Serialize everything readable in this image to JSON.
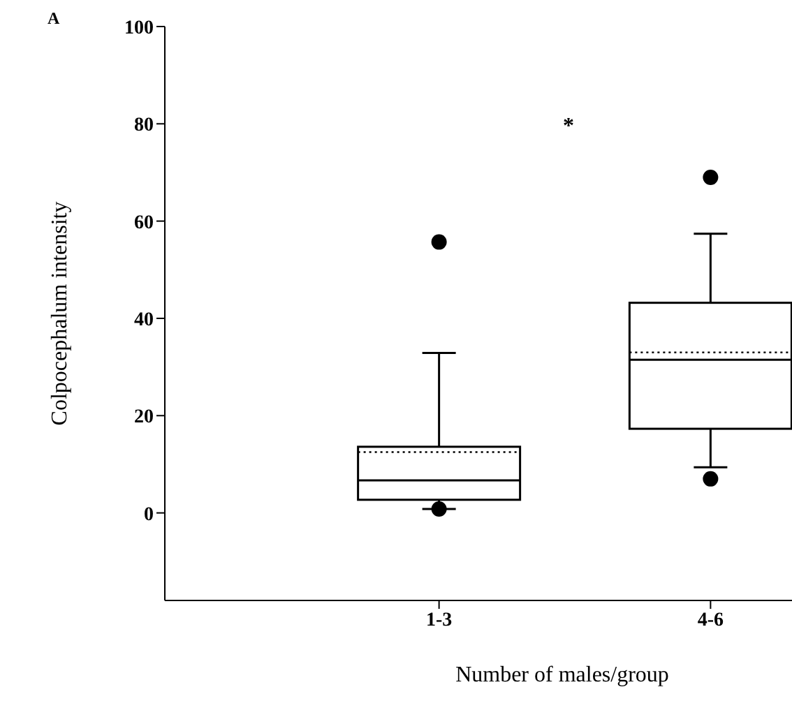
{
  "chart_data": {
    "type": "box",
    "title": "A",
    "categories": [
      "1-3",
      "4-6"
    ],
    "xlabel": "Number of males/group",
    "ylabel": "Colpocephalum intensity",
    "ylim": [
      -18,
      100
    ],
    "yticks": [
      0,
      20,
      40,
      60,
      80,
      100
    ],
    "grid": false,
    "boxes": [
      {
        "low": 0.8,
        "q1": 2.7,
        "median": 6.7,
        "q3": 13.6,
        "high": 32.9,
        "mean": 12.5,
        "outliers": [
          0.8,
          55.7
        ]
      },
      {
        "low": 9.4,
        "q1": 17.3,
        "median": 31.5,
        "q3": 43.2,
        "high": 57.4,
        "mean": 33,
        "outliers": [
          7,
          69
        ]
      }
    ],
    "annotations": [
      "*"
    ]
  }
}
